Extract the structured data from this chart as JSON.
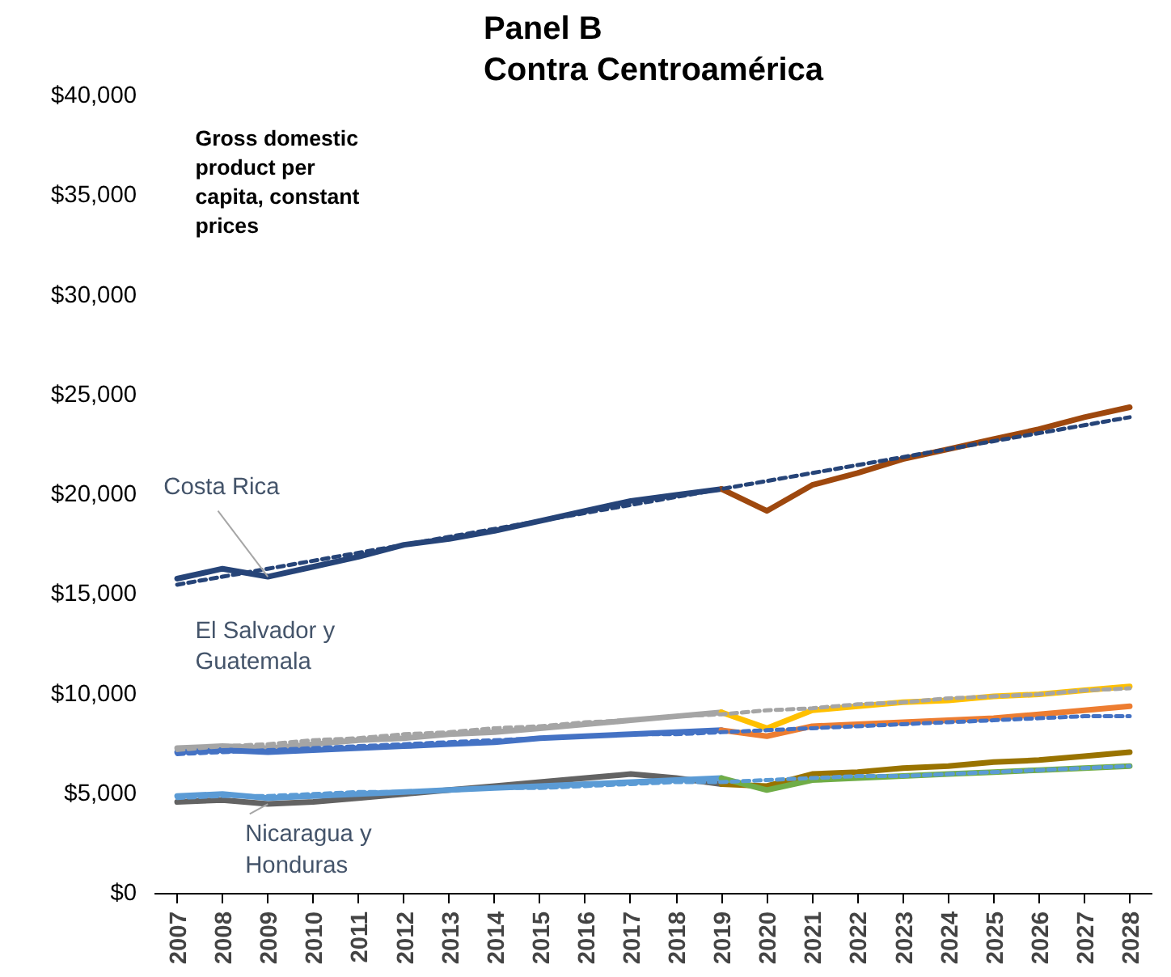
{
  "chart_data": {
    "type": "line",
    "title": "Panel B\nContra Centroamérica",
    "categories": [
      "2007",
      "2008",
      "2009",
      "2010",
      "2011",
      "2012",
      "2013",
      "2014",
      "2015",
      "2016",
      "2017",
      "2018",
      "2019",
      "2020",
      "2021",
      "2022",
      "2023",
      "2024",
      "2025",
      "2026",
      "2027",
      "2028"
    ],
    "ylim": [
      0,
      40000
    ],
    "yticks": [
      {
        "value": 0,
        "label": "$0"
      },
      {
        "value": 5000,
        "label": "$5,000"
      },
      {
        "value": 10000,
        "label": "$10,000"
      },
      {
        "value": 15000,
        "label": "$15,000"
      },
      {
        "value": 20000,
        "label": "$20,000"
      },
      {
        "value": 25000,
        "label": "$25,000"
      },
      {
        "value": 30000,
        "label": "$30,000"
      },
      {
        "value": 35000,
        "label": "$35,000"
      },
      {
        "value": 40000,
        "label": "$40,000"
      }
    ],
    "grid": false,
    "legend": false,
    "marker": "none",
    "annotations": [
      "Gross domestic product per capita, constant prices",
      {
        "text": "Costa Rica",
        "x": "2009",
        "y": 15900
      },
      "El Salvador y Guatemala",
      {
        "text": "Nicaragua y Honduras",
        "x": "2009",
        "y": 4500
      }
    ],
    "series": [
      {
        "color": "#264478",
        "line_style": "solid",
        "values": [
          15800,
          16300,
          15900,
          16400,
          16900,
          17500,
          17800,
          18200,
          18700,
          19200,
          19700,
          20000,
          20300,
          null,
          null,
          null,
          null,
          null,
          null,
          null,
          null,
          null
        ]
      },
      {
        "color": "#9e480e",
        "line_style": "solid",
        "values": [
          null,
          null,
          null,
          null,
          null,
          null,
          null,
          null,
          null,
          null,
          null,
          null,
          20300,
          19200,
          20500,
          21100,
          21800,
          22300,
          22800,
          23300,
          23900,
          24400
        ]
      },
      {
        "color": "#a5a5a5",
        "line_style": "solid",
        "values": [
          7300,
          7400,
          7300,
          7500,
          7700,
          7800,
          8000,
          8100,
          8300,
          8500,
          8700,
          8900,
          9100,
          null,
          null,
          null,
          null,
          null,
          null,
          null,
          null,
          null
        ]
      },
      {
        "color": "#ffc000",
        "line_style": "solid",
        "values": [
          null,
          null,
          null,
          null,
          null,
          null,
          null,
          null,
          null,
          null,
          null,
          null,
          9100,
          8300,
          9200,
          9400,
          9600,
          9700,
          9900,
          10000,
          10200,
          10400
        ]
      },
      {
        "color": "#4472c4",
        "line_style": "solid",
        "values": [
          7100,
          7200,
          7100,
          7200,
          7300,
          7400,
          7500,
          7600,
          7800,
          7900,
          8000,
          8100,
          8200,
          null,
          null,
          null,
          null,
          null,
          null,
          null,
          null,
          null
        ]
      },
      {
        "color": "#ed7d31",
        "line_style": "solid",
        "values": [
          null,
          null,
          null,
          null,
          null,
          null,
          null,
          null,
          null,
          null,
          null,
          null,
          8200,
          7900,
          8400,
          8500,
          8600,
          8700,
          8800,
          9000,
          9200,
          9400
        ]
      },
      {
        "color": "#636363",
        "line_style": "solid",
        "values": [
          4600,
          4700,
          4500,
          4600,
          4800,
          5000,
          5200,
          5400,
          5600,
          5800,
          6000,
          5800,
          5500,
          null,
          null,
          null,
          null,
          null,
          null,
          null,
          null,
          null
        ]
      },
      {
        "color": "#997300",
        "line_style": "solid",
        "values": [
          null,
          null,
          null,
          null,
          null,
          null,
          null,
          null,
          null,
          null,
          null,
          null,
          5500,
          5400,
          6000,
          6100,
          6300,
          6400,
          6600,
          6700,
          6900,
          7100
        ]
      },
      {
        "color": "#5b9bd5",
        "line_style": "solid",
        "values": [
          4900,
          5000,
          4800,
          4900,
          5000,
          5100,
          5200,
          5300,
          5400,
          5500,
          5600,
          5700,
          5800,
          null,
          null,
          null,
          null,
          null,
          null,
          null,
          null,
          null
        ]
      },
      {
        "color": "#70ad47",
        "line_style": "solid",
        "values": [
          null,
          null,
          null,
          null,
          null,
          null,
          null,
          null,
          null,
          null,
          null,
          null,
          5800,
          5200,
          5700,
          5800,
          5900,
          6000,
          6100,
          6200,
          6300,
          6400
        ]
      },
      {
        "color": "#264478",
        "line_style": "dashed",
        "values": [
          15500,
          15900,
          16300,
          16700,
          17100,
          17500,
          17900,
          18300,
          18700,
          19100,
          19500,
          19900,
          20300,
          20700,
          21100,
          21500,
          21900,
          22300,
          22700,
          23100,
          23500,
          23900
        ]
      },
      {
        "color": "#a5a5a5",
        "line_style": "dashed",
        "values": [
          7200,
          7400,
          7500,
          7700,
          7800,
          8000,
          8100,
          8300,
          8400,
          8600,
          8700,
          8900,
          9000,
          9200,
          9300,
          9500,
          9600,
          9800,
          9900,
          10000,
          10200,
          10300
        ]
      },
      {
        "color": "#4472c4",
        "line_style": "dashed",
        "values": [
          7000,
          7100,
          7200,
          7300,
          7400,
          7500,
          7600,
          7700,
          7800,
          7900,
          8000,
          8000,
          8100,
          8200,
          8300,
          8400,
          8500,
          8600,
          8700,
          8800,
          8900,
          8900
        ]
      },
      {
        "color": "#5b9bd5",
        "line_style": "dashed",
        "values": [
          4800,
          4900,
          4900,
          5000,
          5100,
          5100,
          5200,
          5300,
          5300,
          5400,
          5500,
          5600,
          5600,
          5700,
          5800,
          5900,
          5900,
          6000,
          6100,
          6200,
          6300,
          6400
        ]
      }
    ]
  }
}
